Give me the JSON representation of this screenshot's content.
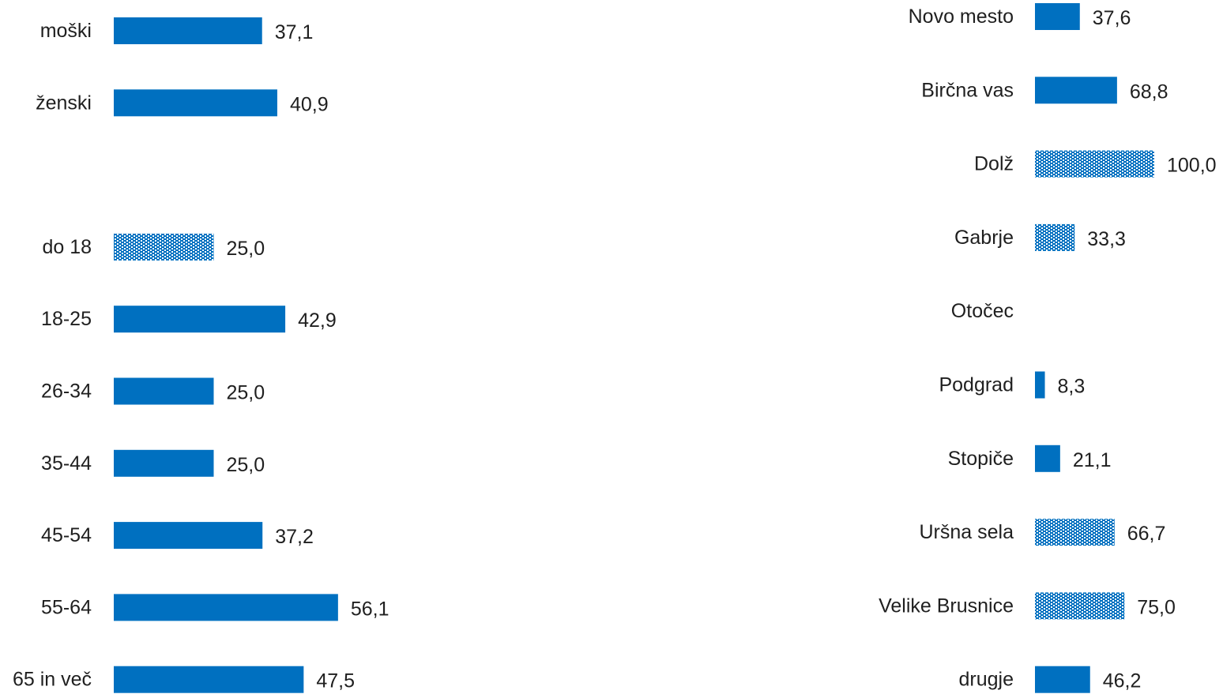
{
  "colors": {
    "bar": "#0070C0",
    "hatch_bg": "#ffffff",
    "text": "#1f1f1f"
  },
  "chart_data": [
    {
      "type": "bar",
      "orientation": "horizontal",
      "title": "",
      "xlabel": "",
      "ylabel": "",
      "xlim": [
        0,
        100
      ],
      "grid": false,
      "categories": [
        "moški",
        "ženski",
        "",
        "do 18",
        "18-25",
        "26-34",
        "35-44",
        "45-54",
        "55-64",
        "65 in več"
      ],
      "values": [
        37.1,
        40.9,
        null,
        25.0,
        42.9,
        25.0,
        25.0,
        37.2,
        56.1,
        47.5
      ],
      "value_labels": [
        "37,1",
        "40,9",
        "",
        "25,0",
        "42,9",
        "25,0",
        "25,0",
        "37,2",
        "56,1",
        "47,5"
      ],
      "patterned": [
        false,
        false,
        false,
        true,
        false,
        false,
        false,
        false,
        false,
        false
      ]
    },
    {
      "type": "bar",
      "orientation": "horizontal",
      "title": "",
      "xlabel": "",
      "ylabel": "",
      "xlim": [
        0,
        100
      ],
      "grid": false,
      "categories": [
        "Novo mesto",
        "Birčna vas",
        "Dolž",
        "Gabrje",
        "Otočec",
        "Podgrad",
        "Stopiče",
        "Uršna sela",
        "Velike Brusnice",
        "drugje"
      ],
      "values": [
        37.6,
        68.8,
        100.0,
        33.3,
        null,
        8.3,
        21.1,
        66.7,
        75.0,
        46.2
      ],
      "value_labels": [
        "37,6",
        "68,8",
        "100,0",
        "33,3",
        "",
        "8,3",
        "21,1",
        "66,7",
        "75,0",
        "46,2"
      ],
      "patterned": [
        false,
        false,
        true,
        true,
        false,
        false,
        false,
        true,
        true,
        false
      ]
    }
  ]
}
